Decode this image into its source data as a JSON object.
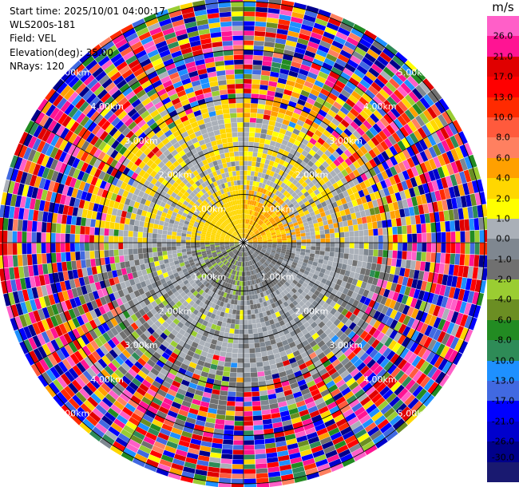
{
  "info": {
    "start_time": "Start time: 2025/10/01 04:00:17",
    "instrument": "WLS200s-181",
    "field": "Field: VEL",
    "elevation": "Elevation(deg): 35.00",
    "nrays": "NRays: 120"
  },
  "colorbar": {
    "unit": "m/s",
    "ticks": [
      "26.0",
      "21.0",
      "17.0",
      "13.0",
      "10.0",
      "8.0",
      "6.0",
      "4.0",
      "2.0",
      "1.0",
      "0.0",
      "-1.0",
      "-2.0",
      "-4.0",
      "-6.0",
      "-8.0",
      "-10.0",
      "-13.0",
      "-17.0",
      "-21.0",
      "-26.0",
      "-30.0"
    ],
    "colors": [
      "#ff5fc8",
      "#ff1493",
      "#e00000",
      "#ff0000",
      "#ff2a00",
      "#ff5a3c",
      "#ff8060",
      "#ffa000",
      "#ffd700",
      "#ffff00",
      "#aab0b8",
      "#7f8790",
      "#707070",
      "#9acd32",
      "#6b8e23",
      "#228b22",
      "#2e8b57",
      "#1e90ff",
      "#4169e1",
      "#0000ff",
      "#0000cd",
      "#00008b",
      "#191970"
    ]
  },
  "chart_data": {
    "type": "heatmap",
    "projection": "polar PPI",
    "field": "VEL",
    "units": "m/s",
    "nrays": 120,
    "elevation_deg": 35.0,
    "range_rings_km": [
      1.0,
      2.0,
      3.0,
      4.0,
      5.0
    ],
    "range_ring_labels": [
      "1.00km",
      "2.00km",
      "3.00km",
      "4.00km",
      "5.00km"
    ],
    "max_range_km": 5.0,
    "value_range": [
      -30.0,
      30.0
    ],
    "pattern": {
      "quadrant_NE_near": 4.0,
      "quadrant_NW_near": 3.0,
      "quadrant_SW_near": -1.5,
      "quadrant_SE_near": -1.0,
      "outer_ring": "noise"
    }
  }
}
